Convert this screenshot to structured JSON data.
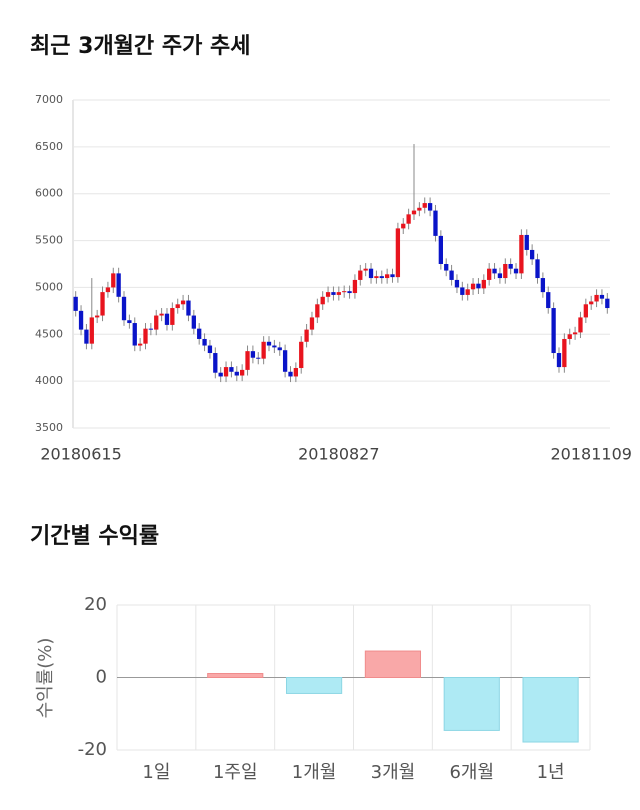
{
  "chart_data": [
    {
      "type": "candlestick",
      "title": "최근 3개월간 주가 추세",
      "categories": [
        null,
        "20180615",
        null,
        null,
        null,
        null,
        null,
        null,
        null,
        null,
        null,
        null,
        null,
        null,
        null,
        null,
        null,
        null,
        null,
        null,
        null,
        null,
        null,
        null,
        null,
        null,
        null,
        null,
        null,
        null,
        null,
        null,
        null,
        null,
        null,
        null,
        null,
        null,
        null,
        null,
        null,
        null,
        null,
        null,
        null,
        null,
        null,
        null,
        null,
        "20180827",
        null,
        null,
        null,
        null,
        null,
        null,
        null,
        null,
        null,
        null,
        null,
        null,
        null,
        null,
        null,
        null,
        null,
        null,
        null,
        null,
        null,
        null,
        null,
        null,
        null,
        null,
        null,
        null,
        null,
        null,
        null,
        null,
        null,
        null,
        null,
        null,
        null,
        null,
        null,
        null,
        null,
        null,
        null,
        null,
        null,
        null,
        "20181109",
        null,
        null,
        null
      ],
      "open": [
        4900,
        4750,
        4550,
        4400,
        4680,
        4700,
        4950,
        5000,
        5150,
        4900,
        4650,
        4620,
        4380,
        4400,
        4560,
        4550,
        4700,
        4720,
        4600,
        4780,
        4820,
        4860,
        4700,
        4560,
        4450,
        4380,
        4300,
        4090,
        4050,
        4150,
        4100,
        4060,
        4120,
        4320,
        4250,
        4240,
        4420,
        4380,
        4360,
        4330,
        4100,
        4050,
        4140,
        4420,
        4550,
        4680,
        4820,
        4900,
        4950,
        4920,
        4950,
        4960,
        4940,
        5080,
        5180,
        5200,
        5100,
        5120,
        5100,
        5140,
        5110,
        5630,
        5680,
        5780,
        5820,
        5850,
        5900,
        5820,
        5550,
        5250,
        5180,
        5080,
        5000,
        4920,
        4980,
        5040,
        4990,
        5080,
        5200,
        5150,
        5100,
        5250,
        5200,
        5150,
        5560,
        5400,
        5300,
        5100,
        4950,
        4780,
        4300,
        4150,
        4450,
        4500,
        4520,
        4680,
        4820,
        4850,
        4920,
        4880
      ],
      "high": [
        4960,
        4810,
        4610,
        5100,
        4760,
        5010,
        5060,
        5210,
        5210,
        4960,
        4710,
        4680,
        4460,
        4620,
        4620,
        4760,
        4780,
        4780,
        4840,
        4880,
        4920,
        4920,
        4760,
        4620,
        4510,
        4440,
        4360,
        4150,
        4210,
        4210,
        4160,
        4180,
        4380,
        4380,
        4310,
        4480,
        4480,
        4440,
        4420,
        4390,
        4160,
        4200,
        4480,
        4610,
        4740,
        4880,
        4960,
        5010,
        5010,
        5010,
        5020,
        5020,
        5140,
        5240,
        5260,
        5260,
        5180,
        5180,
        5200,
        5200,
        5690,
        5740,
        5840,
        6530,
        5910,
        5960,
        5960,
        5880,
        5610,
        5310,
        5240,
        5140,
        5060,
        5040,
        5100,
        5100,
        5140,
        5260,
        5260,
        5210,
        5310,
        5310,
        5260,
        5620,
        5620,
        5460,
        5360,
        5160,
        5010,
        4840,
        4360,
        4510,
        4560,
        4580,
        4740,
        4880,
        4910,
        4980,
        4980,
        4940
      ],
      "low": [
        4690,
        4490,
        4340,
        4340,
        4620,
        4640,
        4890,
        4940,
        4840,
        4590,
        4560,
        4320,
        4320,
        4340,
        4490,
        4490,
        4640,
        4540,
        4540,
        4720,
        4760,
        4640,
        4500,
        4390,
        4320,
        4240,
        4030,
        3990,
        3990,
        4040,
        4000,
        4000,
        4060,
        4190,
        4180,
        4180,
        4320,
        4300,
        4270,
        4040,
        3990,
        3990,
        4080,
        4360,
        4490,
        4620,
        4760,
        4840,
        4860,
        4860,
        4890,
        4880,
        4880,
        5020,
        5120,
        5040,
        5040,
        5040,
        5040,
        5050,
        5050,
        5570,
        5620,
        5720,
        5760,
        5790,
        5760,
        5490,
        5190,
        5120,
        5020,
        4940,
        4860,
        4860,
        4920,
        4930,
        4930,
        5020,
        5090,
        5040,
        5040,
        5140,
        5090,
        5090,
        5340,
        5240,
        5040,
        4890,
        4720,
        4240,
        4090,
        4090,
        4390,
        4440,
        4460,
        4620,
        4760,
        4790,
        4820,
        4720
      ],
      "close": [
        4750,
        4550,
        4400,
        4680,
        4700,
        4950,
        5000,
        5150,
        4900,
        4650,
        4620,
        4380,
        4400,
        4560,
        4550,
        4700,
        4720,
        4600,
        4780,
        4820,
        4860,
        4700,
        4560,
        4450,
        4380,
        4300,
        4090,
        4050,
        4150,
        4100,
        4060,
        4120,
        4320,
        4250,
        4240,
        4420,
        4380,
        4360,
        4330,
        4100,
        4050,
        4140,
        4420,
        4550,
        4680,
        4820,
        4900,
        4950,
        4920,
        4950,
        4960,
        4940,
        5080,
        5180,
        5200,
        5100,
        5120,
        5100,
        5140,
        5110,
        5630,
        5680,
        5780,
        5820,
        5850,
        5900,
        5820,
        5550,
        5250,
        5180,
        5080,
        5000,
        4920,
        4980,
        5040,
        4990,
        5080,
        5200,
        5150,
        5100,
        5250,
        5200,
        5150,
        5560,
        5400,
        5300,
        5100,
        4950,
        4780,
        4300,
        4150,
        4450,
        4500,
        4520,
        4680,
        4820,
        4850,
        4920,
        4880,
        4780
      ],
      "up_color": "#e8141e",
      "down_color": "#0a14c8",
      "ylim": [
        3500,
        7000
      ],
      "yticks": [
        3500,
        4000,
        4500,
        5000,
        5500,
        6000,
        6500,
        7000
      ],
      "grid": true
    },
    {
      "type": "bar",
      "title": "기간별 수익률",
      "ylabel": "수익률(%)",
      "categories": [
        "1일",
        "1주일",
        "1개월",
        "3개월",
        "6개월",
        "1년"
      ],
      "values": [
        0,
        1.1,
        -4.4,
        7.3,
        -14.6,
        -17.8
      ],
      "positive_color": "#f9a8a8",
      "negative_color": "#aeeaf4",
      "ylim": [
        -20,
        20
      ],
      "yticks": [
        -20,
        0,
        20
      ],
      "grid": true
    }
  ]
}
